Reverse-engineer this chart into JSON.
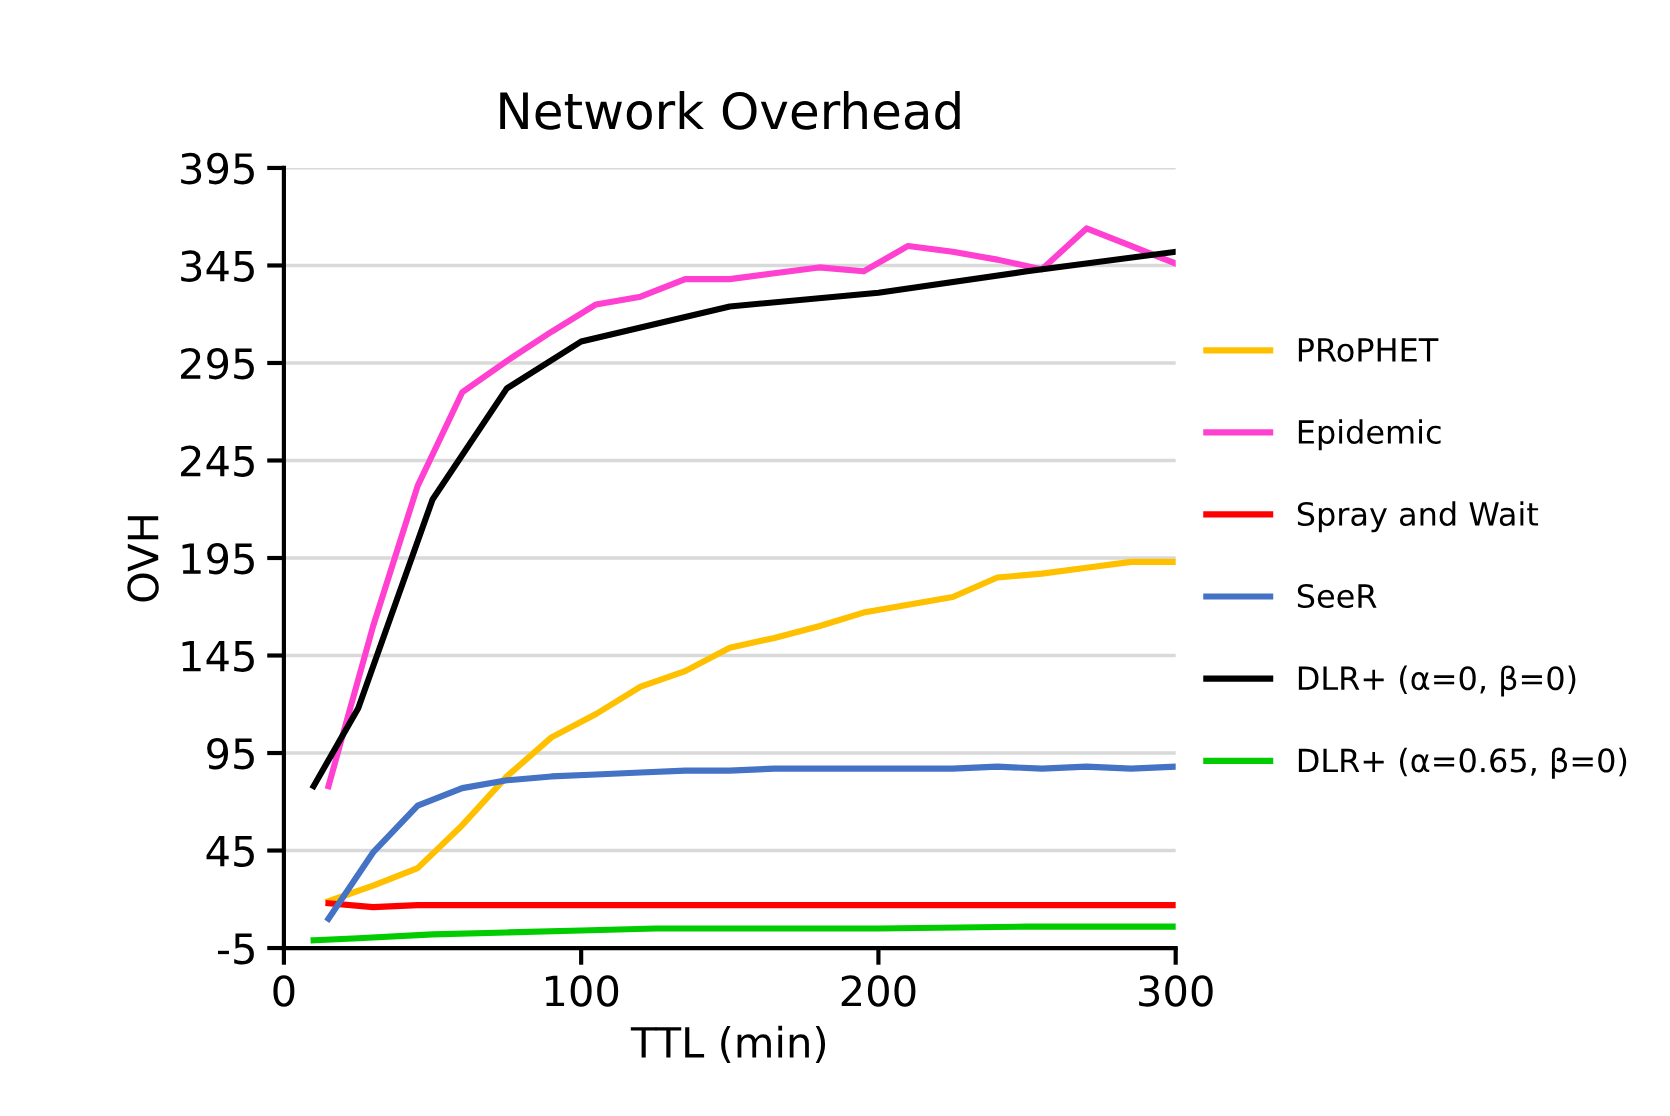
{
  "chart_data": {
    "type": "line",
    "title": "Network Overhead",
    "xlabel": "TTL (min)",
    "ylabel": "OVH",
    "xlim": [
      0,
      300
    ],
    "xticks": [
      0,
      100,
      200,
      300
    ],
    "ylim": [
      -5,
      395
    ],
    "yticks": [
      -5,
      45,
      95,
      145,
      195,
      245,
      295,
      345,
      395
    ],
    "grid": "y",
    "legend": "right",
    "marker": "none",
    "line_style": "solid",
    "series": [
      {
        "name": "PRoPHET",
        "color": "#ffc000",
        "x": [
          15,
          30,
          45,
          60,
          75,
          90,
          105,
          120,
          135,
          150,
          165,
          180,
          195,
          210,
          225,
          240,
          255,
          270,
          285,
          300
        ],
        "values": [
          19,
          27,
          36,
          58,
          83,
          103,
          115,
          129,
          137,
          149,
          154,
          160,
          167,
          171,
          175,
          185,
          187,
          190,
          193,
          193
        ]
      },
      {
        "name": "Epidemic",
        "color": "#ff40d0",
        "x": [
          15,
          30,
          45,
          60,
          75,
          90,
          105,
          120,
          135,
          150,
          165,
          180,
          195,
          210,
          225,
          240,
          255,
          270,
          285,
          300
        ],
        "values": [
          78,
          160,
          232,
          280,
          296,
          311,
          325,
          329,
          338,
          338,
          341,
          344,
          342,
          355,
          352,
          348,
          343,
          364,
          355,
          346
        ]
      },
      {
        "name": "Spray and Wait",
        "color": "#ff0000",
        "x": [
          15,
          30,
          45,
          60,
          75,
          90,
          105,
          120,
          135,
          150,
          165,
          180,
          195,
          210,
          225,
          240,
          255,
          270,
          285,
          300
        ],
        "values": [
          18,
          16,
          17,
          17,
          17,
          17,
          17,
          17,
          17,
          17,
          17,
          17,
          17,
          17,
          17,
          17,
          17,
          17,
          17,
          17
        ]
      },
      {
        "name": "SeeR",
        "color": "#4472c4",
        "x": [
          15,
          30,
          45,
          60,
          75,
          90,
          105,
          120,
          135,
          150,
          165,
          180,
          195,
          210,
          225,
          240,
          255,
          270,
          285,
          300
        ],
        "values": [
          10,
          44,
          68,
          77,
          81,
          83,
          84,
          85,
          86,
          86,
          87,
          87,
          87,
          87,
          87,
          88,
          87,
          88,
          87,
          88
        ]
      },
      {
        "name": "DLR+ (α=0, β=0)",
        "color": "#000000",
        "x": [
          10,
          25,
          50,
          75,
          100,
          125,
          150,
          200,
          250,
          300
        ],
        "values": [
          78,
          118,
          225,
          282,
          306,
          315,
          324,
          331,
          342,
          352
        ]
      },
      {
        "name": "DLR+ (α=0.65, β=0)",
        "color": "#00cc00",
        "x": [
          10,
          25,
          50,
          75,
          100,
          125,
          150,
          200,
          250,
          300
        ],
        "values": [
          -1,
          0,
          2,
          3,
          4,
          5,
          5,
          5,
          6,
          6
        ]
      }
    ]
  }
}
